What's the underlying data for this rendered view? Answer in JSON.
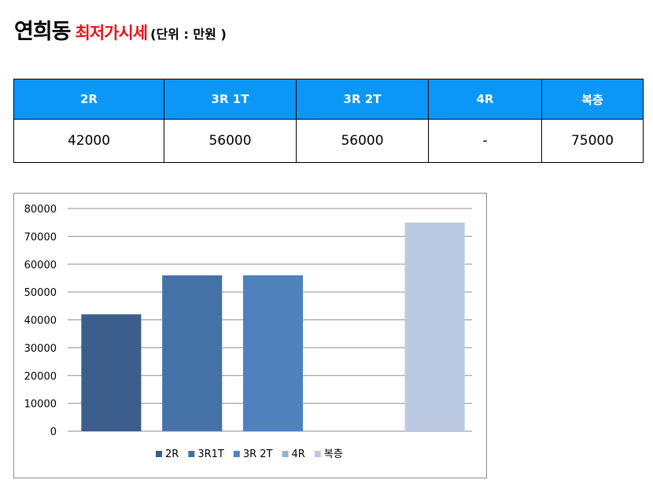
{
  "header": {
    "title": "연희동",
    "subtitle": "최저가시세",
    "unit": "(단위 : 만원 )"
  },
  "table": {
    "columns": [
      "2R",
      "3R 1T",
      "3R 2T",
      "4R",
      "복층"
    ],
    "values": [
      "42000",
      "56000",
      "56000",
      "-",
      "75000"
    ]
  },
  "chart_data": {
    "type": "bar",
    "categories": [
      "2R",
      "3R1T",
      "3R 2T",
      "4R",
      "복층"
    ],
    "values": [
      42000,
      56000,
      56000,
      null,
      75000
    ],
    "colors": [
      "#3b5e8c",
      "#4572a7",
      "#4f81bd",
      "#95b3d7",
      "#bcc9e2"
    ],
    "ylim": [
      0,
      80000
    ],
    "yticks": [
      0,
      10000,
      20000,
      30000,
      40000,
      50000,
      60000,
      70000,
      80000
    ],
    "grid": true,
    "legend": "bottom"
  }
}
